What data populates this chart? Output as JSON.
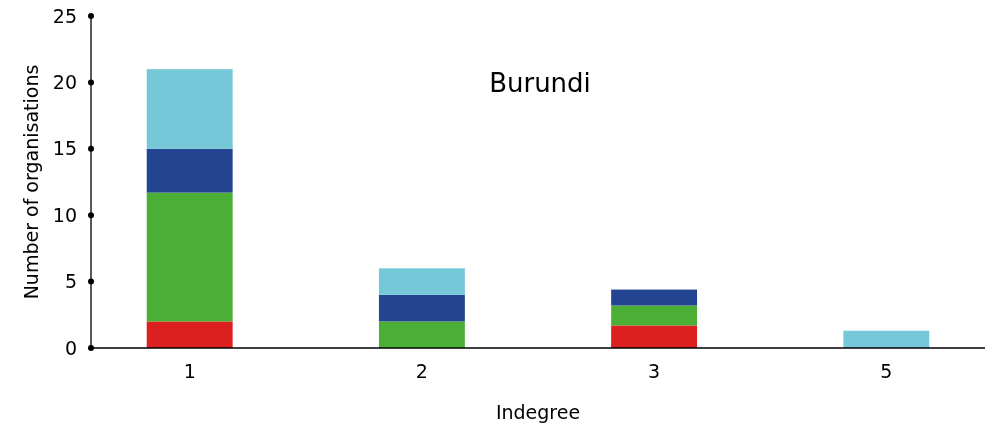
{
  "chart_data": {
    "type": "bar",
    "title": "Burundi",
    "xlabel": "Indegree",
    "ylabel": "Number of organisations",
    "categories": [
      "1",
      "2",
      "3",
      "5"
    ],
    "stacked": true,
    "ylim": [
      0,
      25
    ],
    "yticks": [
      0,
      5,
      10,
      15,
      20,
      25
    ],
    "grid": false,
    "series": [
      {
        "color": "#dc2020",
        "values": [
          2,
          0,
          1.7,
          0
        ]
      },
      {
        "color": "#4caf35",
        "values": [
          9.7,
          2,
          1.5,
          0
        ]
      },
      {
        "color": "#234591",
        "values": [
          3.3,
          2,
          1.2,
          0
        ]
      },
      {
        "color": "#74c8d8",
        "values": [
          6,
          2,
          0,
          1.3
        ]
      }
    ]
  }
}
